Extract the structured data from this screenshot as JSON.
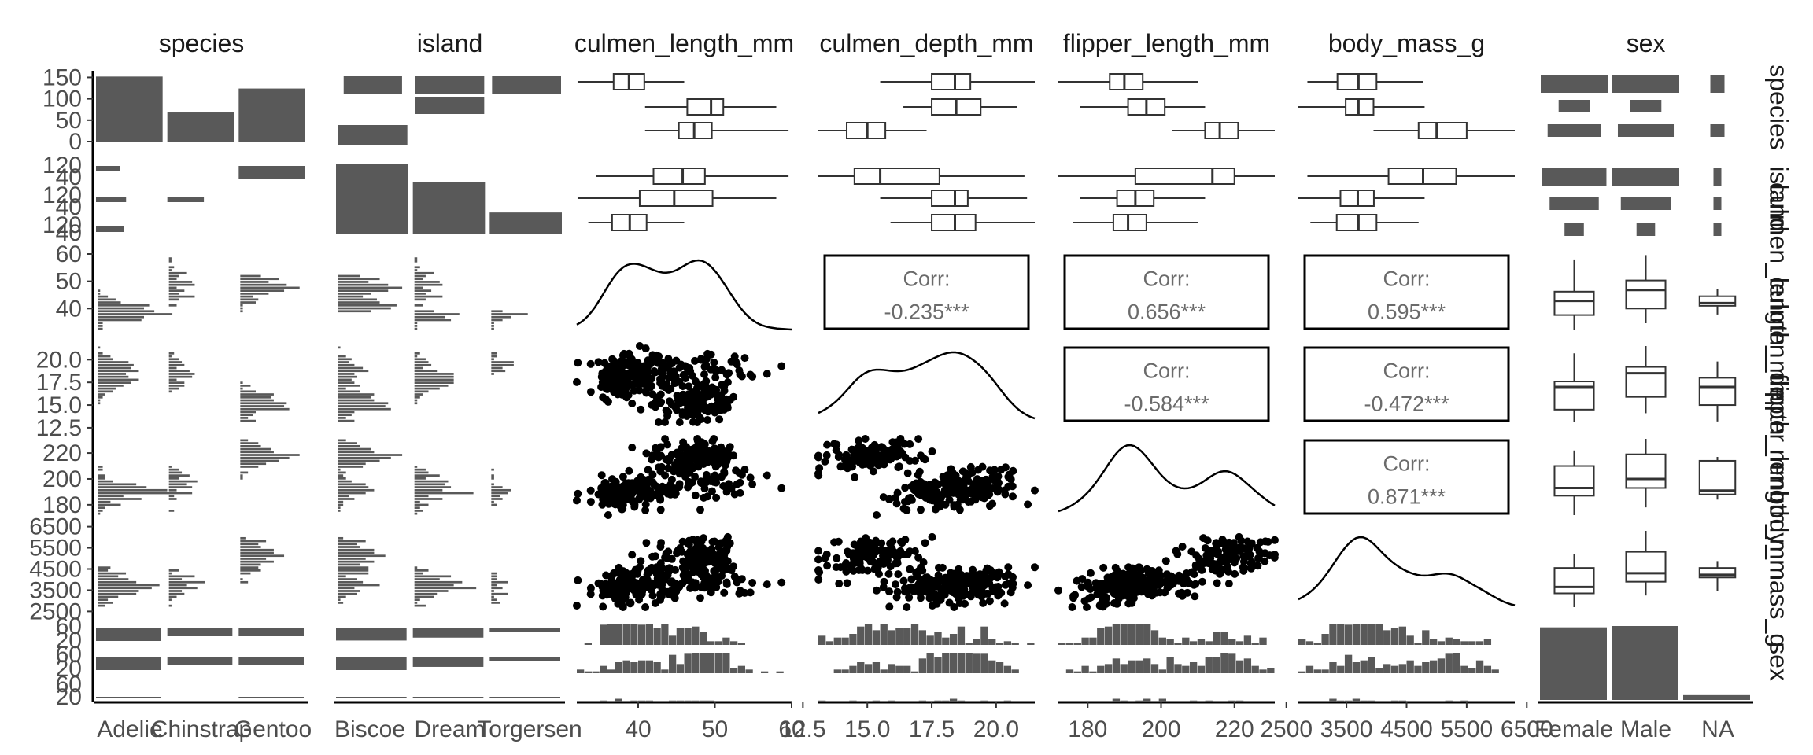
{
  "chart_data": {
    "type": "pairs",
    "title": "",
    "variables": [
      "species",
      "island",
      "culmen_length_mm",
      "culmen_depth_mm",
      "flipper_length_mm",
      "body_mass_g",
      "sex"
    ],
    "column_strip_labels": [
      "species",
      "island",
      "culmen_length_mm",
      "culmen_depth_mm",
      "flipper_length_mm",
      "body_mass_g",
      "sex"
    ],
    "row_strip_labels": [
      "species",
      "island",
      "culmen_length_mm",
      "culmen_depth_mm",
      "flipper_length_mm",
      "body_mass_g",
      "sex"
    ],
    "levels": {
      "species": [
        "Adelie",
        "Chinstrap",
        "Gentoo"
      ],
      "island": [
        "Biscoe",
        "Dream",
        "Torgersen"
      ],
      "sex": [
        "Female",
        "Male",
        "NA"
      ]
    },
    "x_ticks": {
      "species": [
        "Adelie",
        "Chinstrap",
        "Gentoo"
      ],
      "island": [
        "Biscoe",
        "Dream",
        "Torgersen"
      ],
      "culmen_length_mm": [
        "40",
        "50",
        "60"
      ],
      "culmen_depth_mm": [
        "12.5",
        "15.0",
        "17.5",
        "20.0"
      ],
      "flipper_length_mm": [
        "180",
        "200",
        "220"
      ],
      "body_mass_g": [
        "2500",
        "3500",
        "4500",
        "5500",
        "6500"
      ],
      "sex": [
        "Female",
        "Male",
        "NA"
      ]
    },
    "y_ticks": {
      "species": [
        "150",
        "100",
        "50",
        "0"
      ],
      "island": [
        "120",
        "40",
        "120",
        "40",
        "120",
        "40"
      ],
      "culmen_length_mm": [
        "60",
        "50",
        "40"
      ],
      "culmen_depth_mm": [
        "20.0",
        "17.5",
        "15.0",
        "12.5"
      ],
      "flipper_length_mm": [
        "220",
        "200",
        "180"
      ],
      "body_mass_g": [
        "6500",
        "5500",
        "4500",
        "3500",
        "2500"
      ],
      "sex": [
        "60",
        "20",
        "60",
        "20",
        "60",
        "20"
      ]
    },
    "ranges": {
      "culmen_length_mm": [
        32,
        60
      ],
      "culmen_depth_mm": [
        13.1,
        21.5
      ],
      "flipper_length_mm": [
        172,
        231
      ],
      "body_mass_g": [
        2700,
        6300
      ]
    },
    "counts": {
      "species": [
        152,
        68,
        124
      ],
      "island": [
        168,
        124,
        52
      ],
      "species_by_island": [
        [
          44,
          56,
          52
        ],
        [
          0,
          68,
          0
        ],
        [
          124,
          0,
          0
        ]
      ],
      "species_by_sex": [
        [
          73,
          73,
          6
        ],
        [
          34,
          34,
          0
        ],
        [
          58,
          61,
          5
        ]
      ],
      "island_by_sex": [
        [
          80,
          83,
          5
        ],
        [
          61,
          62,
          1
        ],
        [
          24,
          23,
          5
        ]
      ],
      "sex": [
        165,
        168,
        11
      ]
    },
    "species_summary": [
      {
        "culmen_length_mm": [
          32.1,
          36.8,
          38.8,
          40.8,
          46.0
        ],
        "culmen_depth_mm": [
          15.5,
          17.5,
          18.4,
          19.0,
          21.5
        ],
        "flipper_length_mm": [
          172,
          186,
          190,
          195,
          210
        ],
        "body_mass_g": [
          2850,
          3350,
          3700,
          4000,
          4775
        ]
      },
      {
        "culmen_length_mm": [
          40.9,
          46.4,
          49.5,
          51.1,
          58.0
        ],
        "culmen_depth_mm": [
          16.4,
          17.5,
          18.45,
          19.4,
          20.8
        ],
        "flipper_length_mm": [
          178,
          191,
          196,
          201,
          212
        ],
        "body_mass_g": [
          2700,
          3487,
          3700,
          3950,
          4800
        ]
      },
      {
        "culmen_length_mm": [
          40.9,
          45.3,
          47.3,
          49.6,
          59.6
        ],
        "culmen_depth_mm": [
          13.1,
          14.2,
          15.0,
          15.7,
          17.3
        ],
        "flipper_length_mm": [
          203,
          212,
          216,
          221,
          231
        ],
        "body_mass_g": [
          3950,
          4700,
          5000,
          5500,
          6300
        ]
      }
    ],
    "island_summary": [
      {
        "culmen_length_mm": [
          34.5,
          42.0,
          45.8,
          48.7,
          59.6
        ],
        "culmen_depth_mm": [
          13.1,
          14.5,
          15.5,
          17.8,
          21.1
        ],
        "flipper_length_mm": [
          172,
          193,
          214,
          220,
          231
        ],
        "body_mass_g": [
          2850,
          4200,
          4775,
          5325,
          6300
        ]
      },
      {
        "culmen_length_mm": [
          32.1,
          40.2,
          44.7,
          49.7,
          58.0
        ],
        "culmen_depth_mm": [
          15.5,
          17.5,
          18.4,
          18.9,
          21.2
        ],
        "flipper_length_mm": [
          178,
          188,
          193,
          198,
          212
        ],
        "body_mass_g": [
          2700,
          3400,
          3688,
          3956,
          4800
        ]
      },
      {
        "culmen_length_mm": [
          33.5,
          36.6,
          38.9,
          41.1,
          46.0
        ],
        "culmen_depth_mm": [
          15.9,
          17.5,
          18.4,
          19.2,
          21.5
        ],
        "flipper_length_mm": [
          176,
          187,
          191,
          196,
          210
        ],
        "body_mass_g": [
          2900,
          3338,
          3700,
          4000,
          4700
        ]
      }
    ],
    "sex_summary": [
      {
        "culmen_length_mm": [
          32.1,
          37.6,
          42.8,
          46.2,
          58.0
        ],
        "culmen_depth_mm": [
          13.1,
          14.5,
          17.0,
          17.6,
          20.7
        ],
        "flipper_length_mm": [
          172,
          187,
          193,
          210,
          222
        ],
        "body_mass_g": [
          2700,
          3350,
          3650,
          4550,
          5200
        ]
      },
      {
        "culmen_length_mm": [
          34.6,
          40.0,
          46.8,
          50.3,
          59.6
        ],
        "culmen_depth_mm": [
          14.1,
          15.9,
          18.5,
          19.2,
          21.5
        ],
        "flipper_length_mm": [
          178,
          193,
          200,
          219,
          231
        ],
        "body_mass_g": [
          3250,
          3900,
          4300,
          5312,
          6300
        ]
      },
      {
        "culmen_length_mm": [
          37.8,
          41.0,
          42.0,
          44.5,
          47.3
        ],
        "culmen_depth_mm": [
          13.2,
          15.0,
          17.0,
          18.0,
          19.8
        ],
        "flipper_length_mm": [
          184,
          188,
          191,
          214,
          217
        ],
        "body_mass_g": [
          3475,
          4100,
          4225,
          4550,
          4875
        ]
      }
    ],
    "correlations": [
      {
        "pair": [
          "culmen_length_mm",
          "culmen_depth_mm"
        ],
        "label": "Corr:",
        "value": "-0.235***"
      },
      {
        "pair": [
          "culmen_length_mm",
          "flipper_length_mm"
        ],
        "label": "Corr:",
        "value": "0.656***"
      },
      {
        "pair": [
          "culmen_length_mm",
          "body_mass_g"
        ],
        "label": "Corr:",
        "value": "0.595***"
      },
      {
        "pair": [
          "culmen_depth_mm",
          "flipper_length_mm"
        ],
        "label": "Corr:",
        "value": "-0.584***"
      },
      {
        "pair": [
          "culmen_depth_mm",
          "body_mass_g"
        ],
        "label": "Corr:",
        "value": "-0.472***"
      },
      {
        "pair": [
          "flipper_length_mm",
          "body_mass_g"
        ],
        "label": "Corr:",
        "value": "0.871***"
      }
    ],
    "grid": false,
    "legend": "none",
    "bar_color": "#595959",
    "point_color": "#000000"
  }
}
